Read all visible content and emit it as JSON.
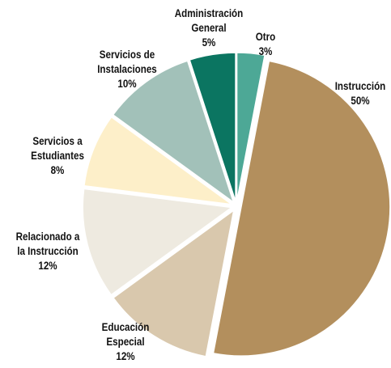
{
  "chart_data": {
    "type": "pie",
    "title": "",
    "start": "12 o'clock",
    "direction": "clockwise",
    "exploded": true,
    "slices": [
      {
        "label_lines": [
          "Otro"
        ],
        "value_label": "3%",
        "value": 3,
        "color": "#4da896"
      },
      {
        "label_lines": [
          "Instrucción"
        ],
        "value_label": "50%",
        "value": 50,
        "color": "#b38f5d"
      },
      {
        "label_lines": [
          "Educación",
          "Especial"
        ],
        "value_label": "12%",
        "value": 12,
        "color": "#d9c8ad"
      },
      {
        "label_lines": [
          "Relacionado a",
          "la Instrucción"
        ],
        "value_label": "12%",
        "value": 12,
        "color": "#eeeae0"
      },
      {
        "label_lines": [
          "Servicios a",
          "Estudiantes"
        ],
        "value_label": "8%",
        "value": 8,
        "color": "#fdefc9"
      },
      {
        "label_lines": [
          "Servicios de",
          "Instalaciones"
        ],
        "value_label": "10%",
        "value": 10,
        "color": "#a2c1b9"
      },
      {
        "label_lines": [
          "Administración",
          "General"
        ],
        "value_label": "5%",
        "value": 5,
        "color": "#0b7561"
      }
    ]
  }
}
